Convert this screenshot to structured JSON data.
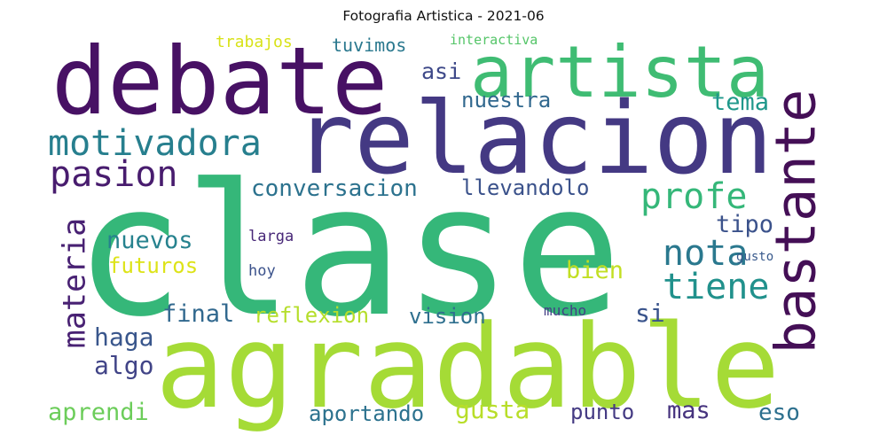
{
  "title": "Fotografia Artistica  - 2021-06",
  "colors": {
    "background": "#ffffff",
    "title": "#111111"
  },
  "words": [
    {
      "text": "clase",
      "color": "#35b779"
    },
    {
      "text": "agradable",
      "color": "#a5db36"
    },
    {
      "text": "relacion",
      "color": "#443983"
    },
    {
      "text": "debate",
      "color": "#471164"
    },
    {
      "text": "artista",
      "color": "#3fbc73"
    },
    {
      "text": "bastante",
      "color": "#440f56"
    },
    {
      "text": "motivadora",
      "color": "#277f8e"
    },
    {
      "text": "pasion",
      "color": "#481c6e"
    },
    {
      "text": "nota",
      "color": "#2a788e"
    },
    {
      "text": "tiene",
      "color": "#21918c"
    },
    {
      "text": "profe",
      "color": "#35b779"
    },
    {
      "text": "materia",
      "color": "#482173"
    },
    {
      "text": "conversacion",
      "color": "#2c728e"
    },
    {
      "text": "llevandolo",
      "color": "#3b528b"
    },
    {
      "text": "nuestra",
      "color": "#31688e"
    },
    {
      "text": "tema",
      "color": "#1f988b"
    },
    {
      "text": "asi",
      "color": "#3e4989"
    },
    {
      "text": "tipo",
      "color": "#3b528b"
    },
    {
      "text": "nuevos",
      "color": "#26828e"
    },
    {
      "text": "futuros",
      "color": "#dde318"
    },
    {
      "text": "bien",
      "color": "#c2df23"
    },
    {
      "text": "final",
      "color": "#31688e"
    },
    {
      "text": "reflexion",
      "color": "#b5de2b"
    },
    {
      "text": "vision",
      "color": "#2e6f8e"
    },
    {
      "text": "si",
      "color": "#3a548c"
    },
    {
      "text": "haga",
      "color": "#39568c"
    },
    {
      "text": "algo",
      "color": "#414487"
    },
    {
      "text": "aprendi",
      "color": "#6ccd5a"
    },
    {
      "text": "aportando",
      "color": "#2c728e"
    },
    {
      "text": "gusta",
      "color": "#b8de29"
    },
    {
      "text": "punto",
      "color": "#443a83"
    },
    {
      "text": "mas",
      "color": "#46337e"
    },
    {
      "text": "eso",
      "color": "#2d708e"
    },
    {
      "text": "trabajos",
      "color": "#d8e219"
    },
    {
      "text": "tuvimos",
      "color": "#2a788e"
    },
    {
      "text": "interactiva",
      "color": "#54c568"
    },
    {
      "text": "larga",
      "color": "#482878"
    },
    {
      "text": "hoy",
      "color": "#3b528b"
    },
    {
      "text": "mucho",
      "color": "#433e85"
    },
    {
      "text": "gusto",
      "color": "#38598c"
    }
  ]
}
